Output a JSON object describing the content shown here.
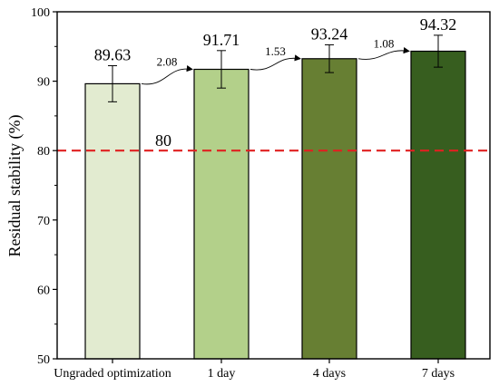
{
  "chart_data": {
    "type": "bar",
    "categories": [
      "Ungraded optimization",
      "1 day",
      "4 days",
      "7 days"
    ],
    "values": [
      89.63,
      91.71,
      93.24,
      94.32
    ],
    "error": [
      2.6,
      2.7,
      2.0,
      2.3
    ],
    "value_labels": [
      "89.63",
      "91.71",
      "93.24",
      "94.32"
    ],
    "colors": [
      "#e2ebd0",
      "#b3d08a",
      "#677f33",
      "#375e1f"
    ],
    "xlabel": "",
    "ylabel": "Residual stability (%)",
    "ylim": [
      50,
      100
    ],
    "yticks": [
      50,
      60,
      70,
      80,
      90,
      100
    ],
    "grid": false,
    "reference_line": {
      "value": 80,
      "label": "80",
      "color": "#e02020"
    },
    "increments": [
      "2.08",
      "1.53",
      "1.08"
    ]
  }
}
